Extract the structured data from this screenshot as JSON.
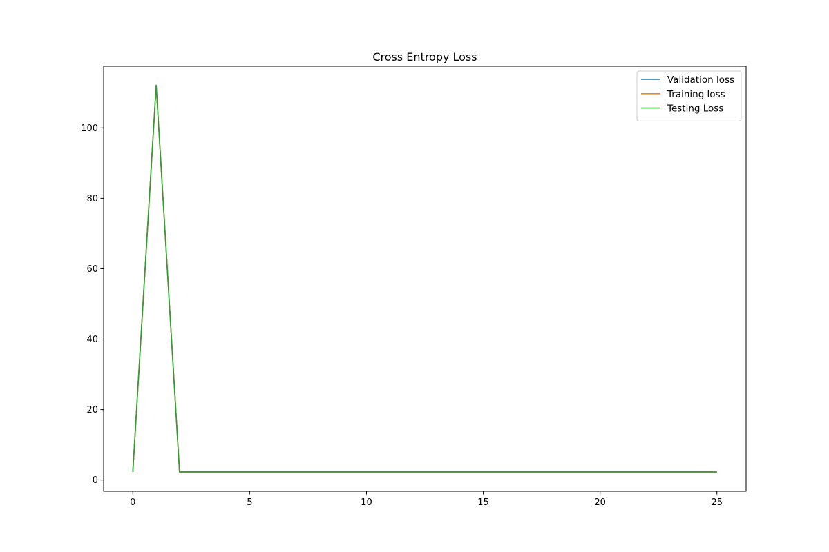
{
  "chart_data": {
    "type": "line",
    "title": "Cross Entropy Loss",
    "xlabel": "",
    "ylabel": "",
    "xlim": [
      -1.25,
      26.25
    ],
    "ylim": [
      -3.2,
      117.5
    ],
    "x_ticks": [
      0,
      5,
      10,
      15,
      20,
      25
    ],
    "y_ticks": [
      0,
      20,
      40,
      60,
      80,
      100
    ],
    "x_tick_labels": [
      "0",
      "5",
      "10",
      "15",
      "20",
      "25"
    ],
    "y_tick_labels": [
      "0",
      "20",
      "40",
      "60",
      "80",
      "100"
    ],
    "grid": false,
    "legend_position": "top-right",
    "x": [
      0,
      1,
      2,
      3,
      4,
      5,
      6,
      7,
      8,
      9,
      10,
      11,
      12,
      13,
      14,
      15,
      16,
      17,
      18,
      19,
      20,
      21,
      22,
      23,
      24,
      25
    ],
    "series": [
      {
        "name": "Validation loss",
        "color": "#1f77b4",
        "values": [
          2.3,
          112.1,
          2.3,
          2.3,
          2.3,
          2.3,
          2.3,
          2.3,
          2.3,
          2.3,
          2.3,
          2.3,
          2.3,
          2.3,
          2.3,
          2.3,
          2.3,
          2.3,
          2.3,
          2.3,
          2.3,
          2.3,
          2.3,
          2.3,
          2.3,
          2.3
        ]
      },
      {
        "name": "Training loss",
        "color": "#ff7f0e",
        "values": [
          2.3,
          112.1,
          2.3,
          2.3,
          2.3,
          2.3,
          2.3,
          2.3,
          2.3,
          2.3,
          2.3,
          2.3,
          2.3,
          2.3,
          2.3,
          2.3,
          2.3,
          2.3,
          2.3,
          2.3,
          2.3,
          2.3,
          2.3,
          2.3,
          2.3,
          2.3
        ]
      },
      {
        "name": "Testing Loss",
        "color": "#2ca02c",
        "values": [
          2.3,
          112.1,
          2.3,
          2.3,
          2.3,
          2.3,
          2.3,
          2.3,
          2.3,
          2.3,
          2.3,
          2.3,
          2.3,
          2.3,
          2.3,
          2.3,
          2.3,
          2.3,
          2.3,
          2.3,
          2.3,
          2.3,
          2.3,
          2.3,
          2.3,
          2.3
        ]
      }
    ]
  }
}
